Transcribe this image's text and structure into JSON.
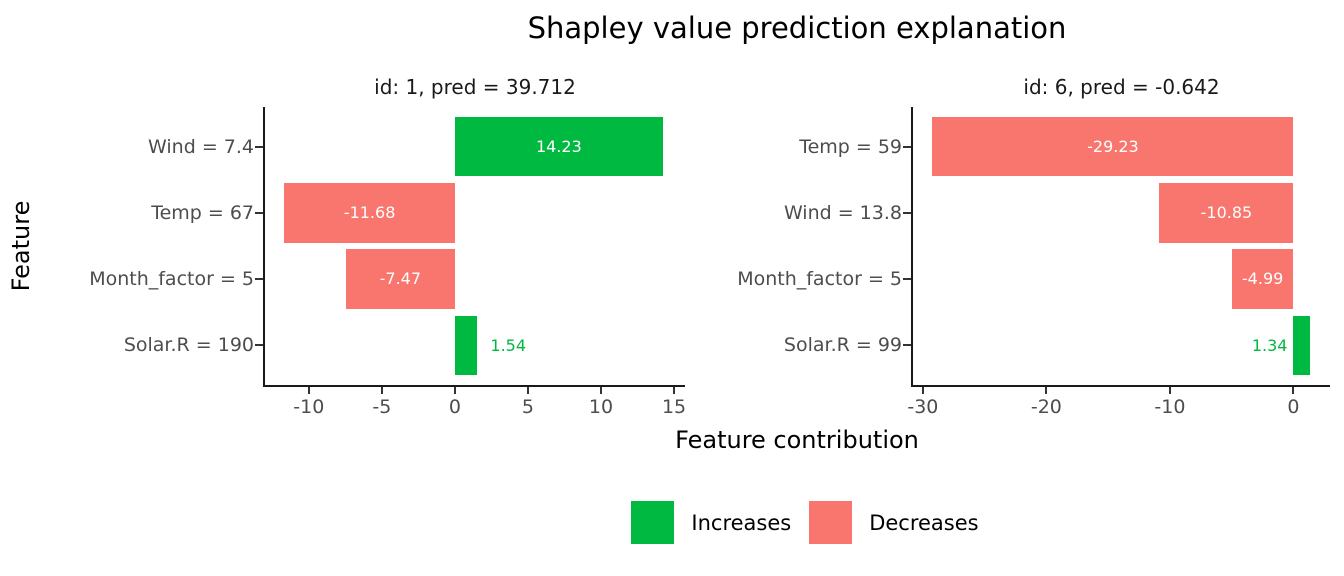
{
  "colors": {
    "increase": "#00B941",
    "decrease": "#F8766D",
    "bar_label_on_bar": "#FFFFFF",
    "axis_text": "#4D4D4D",
    "axis_line": "#1A1A1A",
    "title_text": "#000000"
  },
  "chart_data": {
    "type": "bar",
    "orientation": "horizontal",
    "title": "Shapley value prediction explanation",
    "xlabel": "Feature contribution",
    "ylabel": "Feature",
    "grid": "off",
    "legend_position": "bottom",
    "legend": [
      {
        "label": "Increases",
        "direction": "increase"
      },
      {
        "label": "Decreases",
        "direction": "decrease"
      }
    ],
    "panels": [
      {
        "subtitle": "id: 1, pred = 39.712",
        "id": 1,
        "pred": 39.712,
        "xlim": [
          -13,
          15.75
        ],
        "xticks": [
          -10,
          -5,
          0,
          5,
          10,
          15
        ],
        "bars": [
          {
            "feature": "Wind = 7.4",
            "value": 14.23,
            "label": "14.23",
            "direction": "increase",
            "label_placement": "inside-center"
          },
          {
            "feature": "Temp = 67",
            "value": -11.68,
            "label": "-11.68",
            "direction": "decrease",
            "label_placement": "inside-center"
          },
          {
            "feature": "Month_factor = 5",
            "value": -7.47,
            "label": "-7.47",
            "direction": "decrease",
            "label_placement": "inside-center"
          },
          {
            "feature": "Solar.R = 190",
            "value": 1.54,
            "label": "1.54",
            "direction": "increase",
            "label_placement": "outside-right"
          }
        ]
      },
      {
        "subtitle": "id: 6, pred = -0.642",
        "id": 6,
        "pred": -0.642,
        "xlim": [
          -30.8,
          2.96
        ],
        "xticks": [
          -30,
          -20,
          -10,
          0
        ],
        "bars": [
          {
            "feature": "Temp = 59",
            "value": -29.23,
            "label": "-29.23",
            "direction": "decrease",
            "label_placement": "inside-center"
          },
          {
            "feature": "Wind = 13.8",
            "value": -10.85,
            "label": "-10.85",
            "direction": "decrease",
            "label_placement": "inside-center"
          },
          {
            "feature": "Month_factor = 5",
            "value": -4.99,
            "label": "-4.99",
            "direction": "decrease",
            "label_placement": "inside-center"
          },
          {
            "feature": "Solar.R = 99",
            "value": 1.34,
            "label": "1.34",
            "direction": "increase",
            "label_placement": "outside-left"
          }
        ]
      }
    ]
  }
}
